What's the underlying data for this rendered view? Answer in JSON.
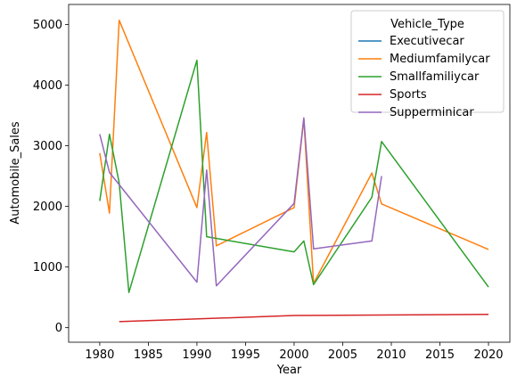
{
  "chart_data": {
    "type": "line",
    "xlabel": "Year",
    "ylabel": "Automobile_Sales",
    "xlim": [
      1976.8,
      2022.2
    ],
    "ylim": [
      -240,
      5330
    ],
    "xticks": [
      1980,
      1985,
      1990,
      1995,
      2000,
      2005,
      2010,
      2015,
      2020
    ],
    "yticks": [
      0,
      1000,
      2000,
      3000,
      4000,
      5000
    ],
    "grid": false,
    "legend_title": "Vehicle_Type",
    "legend_position": "top-right",
    "series": [
      {
        "name": "Executivecar",
        "color": "#1f77b4",
        "points": []
      },
      {
        "name": "Mediumfamilycar",
        "color": "#ff7f0e",
        "points": [
          [
            1980,
            2880
          ],
          [
            1981,
            1890
          ],
          [
            1982,
            5070
          ],
          [
            1990,
            1980
          ],
          [
            1991,
            3220
          ],
          [
            1992,
            1350
          ],
          [
            2000,
            1980
          ],
          [
            2001,
            3440
          ],
          [
            2002,
            730
          ],
          [
            2008,
            2550
          ],
          [
            2009,
            2040
          ],
          [
            2020,
            1290
          ]
        ]
      },
      {
        "name": "Smallfamiliycar",
        "color": "#2ca02c",
        "points": [
          [
            1980,
            2090
          ],
          [
            1981,
            3190
          ],
          [
            1982,
            2390
          ],
          [
            1983,
            580
          ],
          [
            1990,
            4410
          ],
          [
            1991,
            1500
          ],
          [
            2000,
            1250
          ],
          [
            2001,
            1430
          ],
          [
            2002,
            710
          ],
          [
            2008,
            2150
          ],
          [
            2009,
            3070
          ],
          [
            2020,
            670
          ]
        ]
      },
      {
        "name": "Sports",
        "color": "#d62728",
        "points": [
          [
            1982,
            100
          ],
          [
            2000,
            200
          ],
          [
            2020,
            220
          ]
        ]
      },
      {
        "name": "Supperminicar",
        "color": "#9467bd",
        "points": [
          [
            1980,
            3190
          ],
          [
            1981,
            2560
          ],
          [
            1990,
            750
          ],
          [
            1991,
            2600
          ],
          [
            1992,
            690
          ],
          [
            2000,
            2050
          ],
          [
            2001,
            3460
          ],
          [
            2002,
            1300
          ],
          [
            2008,
            1430
          ],
          [
            2009,
            2500
          ]
        ]
      }
    ]
  }
}
